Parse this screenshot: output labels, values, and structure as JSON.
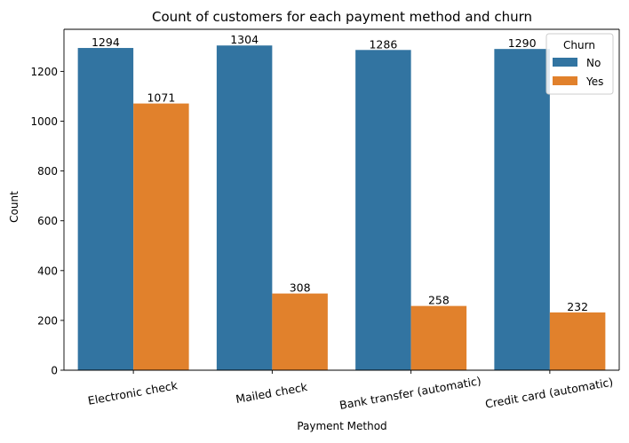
{
  "chart_data": {
    "type": "bar",
    "title": "Count of customers for each payment method and churn",
    "xlabel": "Payment Method",
    "ylabel": "Count",
    "categories": [
      "Electronic check",
      "Mailed check",
      "Bank transfer (automatic)",
      "Credit card (automatic)"
    ],
    "series": [
      {
        "name": "No",
        "values": [
          1294,
          1304,
          1286,
          1290
        ],
        "color": "#3274a1"
      },
      {
        "name": "Yes",
        "values": [
          1071,
          308,
          258,
          232
        ],
        "color": "#e1812c"
      }
    ],
    "ylim": [
      0,
      1369
    ],
    "yticks": [
      0,
      200,
      400,
      600,
      800,
      1000,
      1200
    ],
    "xtick_rotation_deg": -10,
    "data_labels": true,
    "grid": false,
    "legend": {
      "title": "Churn",
      "placement": "top-right"
    }
  }
}
